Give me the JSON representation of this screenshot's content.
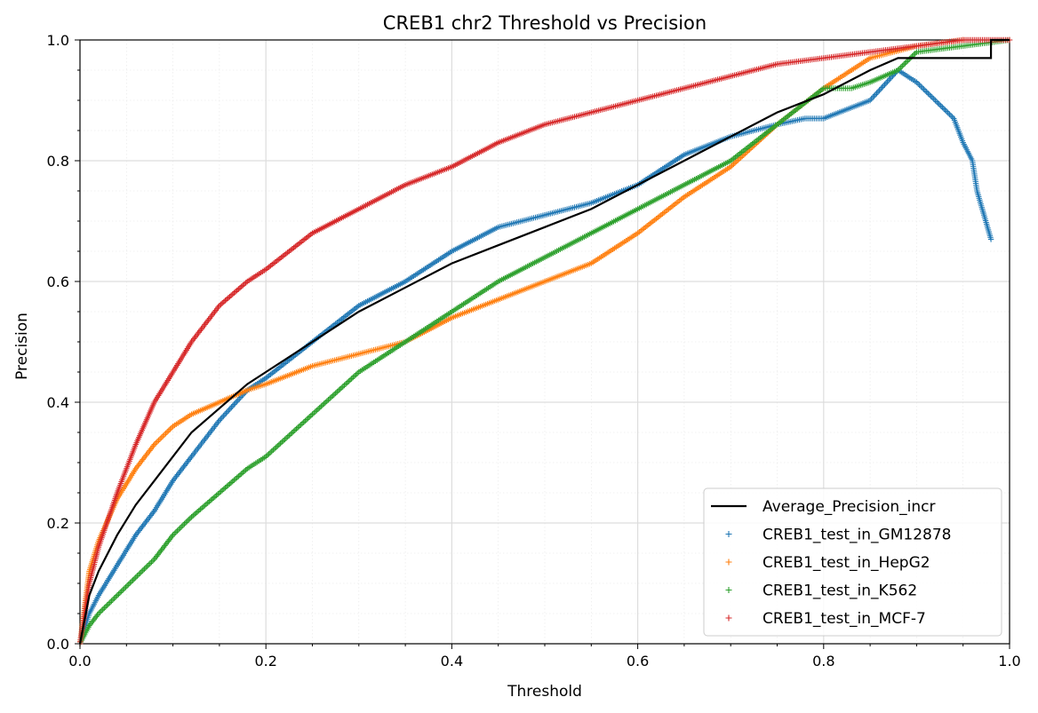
{
  "chart_data": {
    "type": "scatter",
    "title": "CREB1 chr2 Threshold vs Precision",
    "xlabel": "Threshold",
    "ylabel": "Precision",
    "xlim": [
      0.0,
      1.0
    ],
    "ylim": [
      0.0,
      1.0
    ],
    "xticks": [
      "0.0",
      "0.2",
      "0.4",
      "0.6",
      "0.8",
      "1.0"
    ],
    "yticks": [
      "0.0",
      "0.2",
      "0.4",
      "0.6",
      "0.8",
      "1.0"
    ],
    "grid": "major solid, minor dotted",
    "legend_position": "lower-right",
    "line_series": [
      {
        "name": "Average_Precision_incr",
        "color": "#000000",
        "points": [
          [
            0.0,
            0.0
          ],
          [
            0.01,
            0.08
          ],
          [
            0.02,
            0.12
          ],
          [
            0.04,
            0.18
          ],
          [
            0.06,
            0.23
          ],
          [
            0.08,
            0.27
          ],
          [
            0.1,
            0.31
          ],
          [
            0.12,
            0.35
          ],
          [
            0.15,
            0.39
          ],
          [
            0.18,
            0.43
          ],
          [
            0.2,
            0.45
          ],
          [
            0.25,
            0.5
          ],
          [
            0.3,
            0.55
          ],
          [
            0.35,
            0.59
          ],
          [
            0.4,
            0.63
          ],
          [
            0.45,
            0.66
          ],
          [
            0.5,
            0.69
          ],
          [
            0.55,
            0.72
          ],
          [
            0.6,
            0.76
          ],
          [
            0.65,
            0.8
          ],
          [
            0.7,
            0.84
          ],
          [
            0.75,
            0.88
          ],
          [
            0.8,
            0.91
          ],
          [
            0.85,
            0.95
          ],
          [
            0.88,
            0.97
          ],
          [
            0.9,
            0.97
          ],
          [
            0.95,
            0.97
          ],
          [
            0.98,
            0.97
          ],
          [
            0.98,
            1.0
          ],
          [
            1.0,
            1.0
          ]
        ]
      }
    ],
    "series": [
      {
        "name": "CREB1_test_in_GM12878",
        "color": "#1f77b4",
        "points": [
          [
            0.0,
            0.0
          ],
          [
            0.01,
            0.05
          ],
          [
            0.02,
            0.08
          ],
          [
            0.04,
            0.13
          ],
          [
            0.06,
            0.18
          ],
          [
            0.08,
            0.22
          ],
          [
            0.1,
            0.27
          ],
          [
            0.12,
            0.31
          ],
          [
            0.15,
            0.37
          ],
          [
            0.18,
            0.42
          ],
          [
            0.2,
            0.44
          ],
          [
            0.25,
            0.5
          ],
          [
            0.3,
            0.56
          ],
          [
            0.35,
            0.6
          ],
          [
            0.4,
            0.65
          ],
          [
            0.45,
            0.69
          ],
          [
            0.5,
            0.71
          ],
          [
            0.55,
            0.73
          ],
          [
            0.6,
            0.76
          ],
          [
            0.65,
            0.81
          ],
          [
            0.7,
            0.84
          ],
          [
            0.75,
            0.86
          ],
          [
            0.78,
            0.87
          ],
          [
            0.8,
            0.87
          ],
          [
            0.85,
            0.9
          ],
          [
            0.88,
            0.95
          ],
          [
            0.9,
            0.93
          ],
          [
            0.92,
            0.9
          ],
          [
            0.94,
            0.87
          ],
          [
            0.95,
            0.83
          ],
          [
            0.96,
            0.8
          ],
          [
            0.965,
            0.75
          ],
          [
            0.98,
            0.67
          ]
        ]
      },
      {
        "name": "CREB1_test_in_HepG2",
        "color": "#ff7f0e",
        "points": [
          [
            0.0,
            0.0
          ],
          [
            0.01,
            0.12
          ],
          [
            0.02,
            0.17
          ],
          [
            0.04,
            0.24
          ],
          [
            0.06,
            0.29
          ],
          [
            0.08,
            0.33
          ],
          [
            0.1,
            0.36
          ],
          [
            0.12,
            0.38
          ],
          [
            0.15,
            0.4
          ],
          [
            0.18,
            0.42
          ],
          [
            0.2,
            0.43
          ],
          [
            0.25,
            0.46
          ],
          [
            0.3,
            0.48
          ],
          [
            0.35,
            0.5
          ],
          [
            0.4,
            0.54
          ],
          [
            0.45,
            0.57
          ],
          [
            0.5,
            0.6
          ],
          [
            0.55,
            0.63
          ],
          [
            0.6,
            0.68
          ],
          [
            0.65,
            0.74
          ],
          [
            0.7,
            0.79
          ],
          [
            0.75,
            0.86
          ],
          [
            0.8,
            0.92
          ],
          [
            0.85,
            0.97
          ],
          [
            0.9,
            0.99
          ],
          [
            0.95,
            1.0
          ]
        ]
      },
      {
        "name": "CREB1_test_in_K562",
        "color": "#2ca02c",
        "points": [
          [
            0.0,
            0.0
          ],
          [
            0.01,
            0.03
          ],
          [
            0.02,
            0.05
          ],
          [
            0.04,
            0.08
          ],
          [
            0.06,
            0.11
          ],
          [
            0.08,
            0.14
          ],
          [
            0.1,
            0.18
          ],
          [
            0.12,
            0.21
          ],
          [
            0.15,
            0.25
          ],
          [
            0.18,
            0.29
          ],
          [
            0.2,
            0.31
          ],
          [
            0.25,
            0.38
          ],
          [
            0.3,
            0.45
          ],
          [
            0.35,
            0.5
          ],
          [
            0.4,
            0.55
          ],
          [
            0.45,
            0.6
          ],
          [
            0.5,
            0.64
          ],
          [
            0.55,
            0.68
          ],
          [
            0.6,
            0.72
          ],
          [
            0.65,
            0.76
          ],
          [
            0.7,
            0.8
          ],
          [
            0.75,
            0.86
          ],
          [
            0.8,
            0.92
          ],
          [
            0.83,
            0.92
          ],
          [
            0.85,
            0.93
          ],
          [
            0.88,
            0.95
          ],
          [
            0.9,
            0.98
          ],
          [
            0.95,
            0.99
          ],
          [
            1.0,
            1.0
          ]
        ]
      },
      {
        "name": "CREB1_test_in_MCF-7",
        "color": "#d62728",
        "points": [
          [
            0.0,
            0.0
          ],
          [
            0.01,
            0.1
          ],
          [
            0.02,
            0.16
          ],
          [
            0.04,
            0.25
          ],
          [
            0.06,
            0.33
          ],
          [
            0.08,
            0.4
          ],
          [
            0.1,
            0.45
          ],
          [
            0.12,
            0.5
          ],
          [
            0.15,
            0.56
          ],
          [
            0.18,
            0.6
          ],
          [
            0.2,
            0.62
          ],
          [
            0.25,
            0.68
          ],
          [
            0.3,
            0.72
          ],
          [
            0.35,
            0.76
          ],
          [
            0.4,
            0.79
          ],
          [
            0.45,
            0.83
          ],
          [
            0.5,
            0.86
          ],
          [
            0.55,
            0.88
          ],
          [
            0.6,
            0.9
          ],
          [
            0.65,
            0.92
          ],
          [
            0.7,
            0.94
          ],
          [
            0.75,
            0.96
          ],
          [
            0.8,
            0.97
          ],
          [
            0.85,
            0.98
          ],
          [
            0.9,
            0.99
          ],
          [
            0.95,
            1.0
          ],
          [
            1.0,
            1.0
          ]
        ]
      }
    ]
  }
}
